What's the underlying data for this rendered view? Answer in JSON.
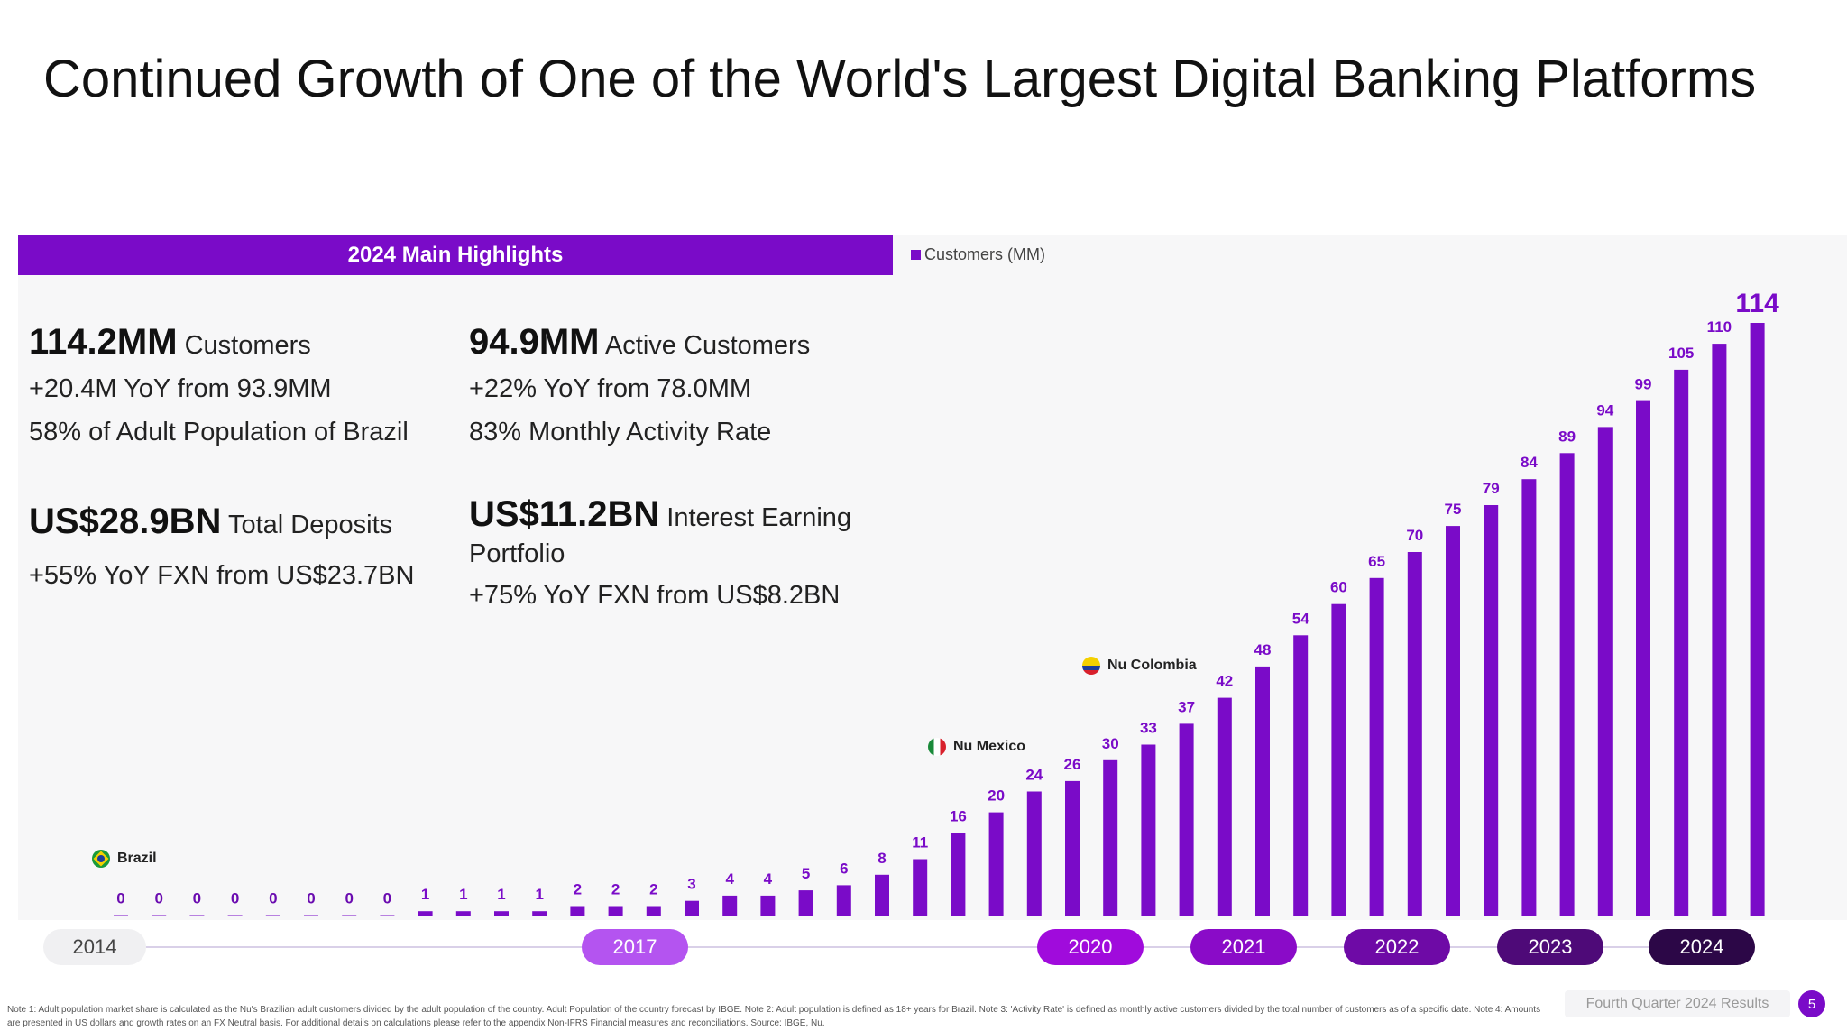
{
  "title": "Continued Growth of One of the World's Largest Digital Banking Platforms",
  "highlights": {
    "header": "2024 Main Highlights",
    "customers": {
      "value": "114.2MM",
      "label": "Customers",
      "line1": "+20.4M YoY from 93.9MM",
      "line2": "58% of Adult Population of Brazil"
    },
    "active": {
      "value": "94.9MM",
      "label": "Active Customers",
      "line1": "+22% YoY from 78.0MM",
      "line2": "83% Monthly Activity Rate"
    },
    "deposits": {
      "value": "US$28.9BN",
      "label": "Total Deposits",
      "line1": "+55% YoY FXN from US$23.7BN"
    },
    "portfolio": {
      "value": "US$11.2BN",
      "label": "Interest Earning",
      "label2": "Portfolio",
      "line1": "+75% YoY FXN from US$8.2BN"
    }
  },
  "markers": {
    "brazil": "Brazil",
    "mexico": "Nu Mexico",
    "colombia": "Nu Colombia"
  },
  "timeline": {
    "y2014": "2014",
    "y2017": "2017",
    "y2020": "2020",
    "y2021": "2021",
    "y2022": "2022",
    "y2023": "2023",
    "y2024": "2024"
  },
  "colors": {
    "bar": "#7a0bc8",
    "y2017": "#b454f0",
    "y2020": "#a00bdc",
    "y2021": "#8a0bc8",
    "y2022": "#6e0aa6",
    "y2023": "#4e0a78",
    "y2024": "#2c0747"
  },
  "notes": "Note 1: Adult population market share is calculated as the Nu's Brazilian adult customers divided by the adult population of the country. Adult Population of the country forecast by IBGE. Note 2: Adult population is defined as 18+ years for Brazil. Note 3: 'Activity Rate' is defined as monthly active customers divided by the total number of customers as of a specific date. Note 4: Amounts are presented in US dollars and growth rates on an FX Neutral basis. For additional details on calculations please refer to the appendix Non-IFRS Financial measures and reconciliations. Source: IBGE, Nu.",
  "footer": "Fourth Quarter 2024 Results",
  "page_number": "5",
  "chart_data": {
    "type": "bar",
    "series": [
      {
        "name": "Customers (MM)",
        "values": [
          0,
          0,
          0,
          0,
          0,
          0,
          0,
          0,
          1,
          1,
          1,
          1,
          2,
          2,
          2,
          3,
          4,
          4,
          5,
          6,
          8,
          11,
          16,
          20,
          24,
          26,
          30,
          33,
          37,
          42,
          48,
          54,
          60,
          65,
          70,
          75,
          79,
          84,
          89,
          94,
          99,
          105,
          110,
          114
        ]
      }
    ],
    "legend": "top-left",
    "ylim": [
      0,
      120
    ],
    "grid": false
  }
}
